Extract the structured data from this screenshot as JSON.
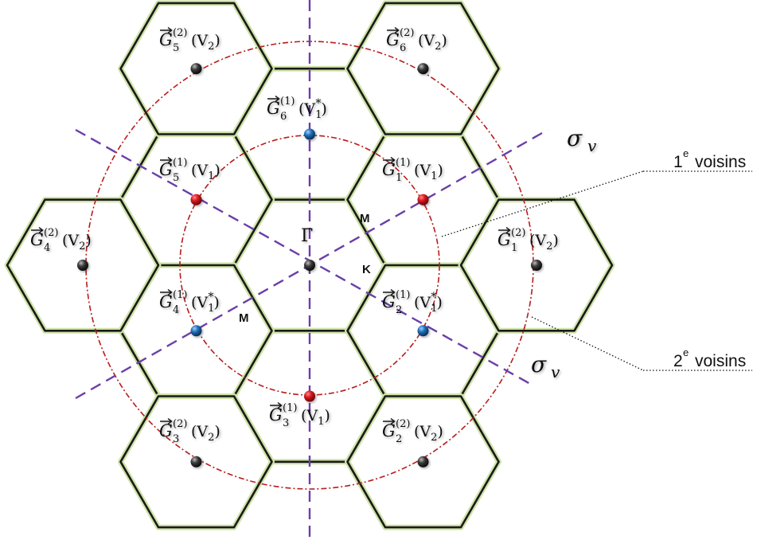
{
  "colors": {
    "hex_edge": "#1a1a1a",
    "hex_glow": "#cfe3a8",
    "circle": "#b81c1c",
    "axis": "#6b3fa8",
    "node_red": "#d9161c",
    "node_blue": "#1f6fb8",
    "node_grey": "#3a3a3a"
  },
  "center_label": "Γ",
  "point_labels": [
    "M",
    "K",
    "M"
  ],
  "symmetry_label": {
    "symbol": "σ",
    "subscript": "v"
  },
  "callouts": {
    "first": {
      "number": "1",
      "sup": "e",
      "text": "voisins"
    },
    "second": {
      "number": "2",
      "sup": "e",
      "text": "voisins"
    }
  },
  "vectors": [
    {
      "index": "5",
      "order": "(2)",
      "arg": "(V",
      "argsub": "2",
      "argstar": "",
      "argend": ")"
    },
    {
      "index": "6",
      "order": "(2)",
      "arg": "(V",
      "argsub": "2",
      "argstar": "",
      "argend": ")"
    },
    {
      "index": "6",
      "order": "(1)",
      "arg": "(V",
      "argsub": "1",
      "argstar": "*",
      "argend": ")"
    },
    {
      "index": "5",
      "order": "(1)",
      "arg": "(V",
      "argsub": "1",
      "argstar": "",
      "argend": ")"
    },
    {
      "index": "1",
      "order": "(1)",
      "arg": "(V",
      "argsub": "1",
      "argstar": "",
      "argend": ")"
    },
    {
      "index": "4",
      "order": "(2)",
      "arg": "(V",
      "argsub": "2",
      "argstar": "",
      "argend": ")"
    },
    {
      "index": "1",
      "order": "(2)",
      "arg": "(V",
      "argsub": "2",
      "argstar": "",
      "argend": ")"
    },
    {
      "index": "4",
      "order": "(1)",
      "arg": "(V",
      "argsub": "1",
      "argstar": "*",
      "argend": ")"
    },
    {
      "index": "2",
      "order": "(1)",
      "arg": "(V",
      "argsub": "1",
      "argstar": "*",
      "argend": ")"
    },
    {
      "index": "3",
      "order": "(1)",
      "arg": "(V",
      "argsub": "1",
      "argstar": "",
      "argend": ")"
    },
    {
      "index": "3",
      "order": "(2)",
      "arg": "(V",
      "argsub": "2",
      "argstar": "",
      "argend": ")"
    },
    {
      "index": "2",
      "order": "(2)",
      "arg": "(V",
      "argsub": "2",
      "argstar": "",
      "argend": ")"
    }
  ]
}
